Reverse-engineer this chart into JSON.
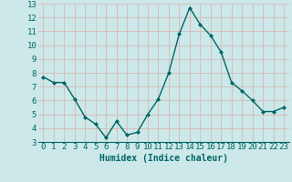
{
  "x": [
    0,
    1,
    2,
    3,
    4,
    5,
    6,
    7,
    8,
    9,
    10,
    11,
    12,
    13,
    14,
    15,
    16,
    17,
    18,
    19,
    20,
    21,
    22,
    23
  ],
  "y": [
    7.7,
    7.3,
    7.3,
    6.1,
    4.8,
    4.3,
    3.3,
    4.5,
    3.5,
    3.7,
    5.0,
    6.1,
    8.0,
    10.8,
    12.7,
    11.5,
    10.7,
    9.5,
    7.3,
    6.7,
    6.0,
    5.2,
    5.2,
    5.5
  ],
  "xlabel": "Humidex (Indice chaleur)",
  "ylim": [
    3,
    13
  ],
  "xlim": [
    -0.5,
    23.5
  ],
  "yticks": [
    3,
    4,
    5,
    6,
    7,
    8,
    9,
    10,
    11,
    12,
    13
  ],
  "xticks": [
    0,
    1,
    2,
    3,
    4,
    5,
    6,
    7,
    8,
    9,
    10,
    11,
    12,
    13,
    14,
    15,
    16,
    17,
    18,
    19,
    20,
    21,
    22,
    23
  ],
  "line_color": "#006666",
  "marker": "D",
  "marker_size": 2.0,
  "bg_color": "#cce8e8",
  "grid_color": "#d8b8b8",
  "xlabel_fontsize": 7,
  "tick_fontsize": 6.5,
  "tick_color": "#006666",
  "line_width": 1.0
}
